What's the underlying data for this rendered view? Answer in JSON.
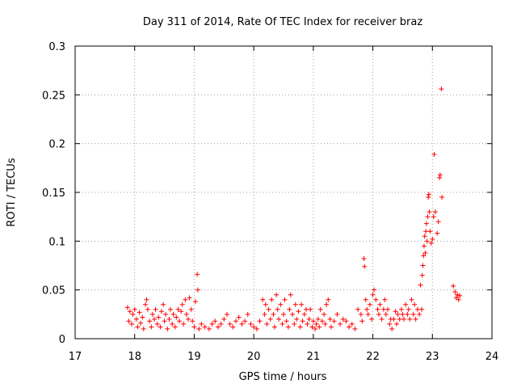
{
  "chart_data": {
    "type": "scatter",
    "title": "Day 311 of 2014, Rate Of TEC Index for receiver braz",
    "xlabel": "GPS time / hours",
    "ylabel": "ROTI / TECUs",
    "xlim": [
      17,
      24
    ],
    "ylim": [
      0,
      0.3
    ],
    "xticks": [
      17,
      18,
      19,
      20,
      21,
      22,
      23,
      24
    ],
    "xtick_labels": [
      "17",
      "18",
      "19",
      "20",
      "21",
      "22",
      "23",
      "24"
    ],
    "yticks": [
      0,
      0.05,
      0.1,
      0.15,
      0.2,
      0.25,
      0.3
    ],
    "ytick_labels": [
      "0",
      "0.05",
      "0.1",
      "0.15",
      "0.2",
      "0.25",
      "0.3"
    ],
    "grid": true,
    "marker": "+",
    "series": [
      {
        "name": "ROTI",
        "color": "#ff0000",
        "points": [
          [
            17.88,
            0.032
          ],
          [
            17.9,
            0.018
          ],
          [
            17.92,
            0.028
          ],
          [
            17.95,
            0.015
          ],
          [
            17.97,
            0.025
          ],
          [
            18.0,
            0.03
          ],
          [
            18.03,
            0.02
          ],
          [
            18.05,
            0.012
          ],
          [
            18.08,
            0.027
          ],
          [
            18.1,
            0.016
          ],
          [
            18.13,
            0.022
          ],
          [
            18.15,
            0.01
          ],
          [
            18.18,
            0.035
          ],
          [
            18.2,
            0.04
          ],
          [
            18.22,
            0.03
          ],
          [
            18.25,
            0.018
          ],
          [
            18.28,
            0.012
          ],
          [
            18.3,
            0.025
          ],
          [
            18.33,
            0.02
          ],
          [
            18.35,
            0.03
          ],
          [
            18.38,
            0.015
          ],
          [
            18.4,
            0.022
          ],
          [
            18.43,
            0.012
          ],
          [
            18.45,
            0.028
          ],
          [
            18.48,
            0.035
          ],
          [
            18.5,
            0.018
          ],
          [
            18.52,
            0.025
          ],
          [
            18.55,
            0.01
          ],
          [
            18.58,
            0.02
          ],
          [
            18.6,
            0.03
          ],
          [
            18.63,
            0.015
          ],
          [
            18.65,
            0.025
          ],
          [
            18.68,
            0.012
          ],
          [
            18.7,
            0.022
          ],
          [
            18.73,
            0.03
          ],
          [
            18.75,
            0.018
          ],
          [
            18.78,
            0.028
          ],
          [
            18.8,
            0.035
          ],
          [
            18.82,
            0.015
          ],
          [
            18.85,
            0.04
          ],
          [
            18.87,
            0.025
          ],
          [
            18.9,
            0.02
          ],
          [
            18.92,
            0.042
          ],
          [
            18.95,
            0.03
          ],
          [
            18.97,
            0.018
          ],
          [
            19.0,
            0.012
          ],
          [
            19.02,
            0.038
          ],
          [
            19.05,
            0.066
          ],
          [
            19.06,
            0.05
          ],
          [
            19.08,
            0.01
          ],
          [
            19.12,
            0.015
          ],
          [
            19.18,
            0.012
          ],
          [
            19.25,
            0.01
          ],
          [
            19.3,
            0.015
          ],
          [
            19.35,
            0.018
          ],
          [
            19.4,
            0.012
          ],
          [
            19.45,
            0.015
          ],
          [
            19.5,
            0.02
          ],
          [
            19.55,
            0.025
          ],
          [
            19.6,
            0.015
          ],
          [
            19.65,
            0.012
          ],
          [
            19.7,
            0.018
          ],
          [
            19.75,
            0.022
          ],
          [
            19.8,
            0.015
          ],
          [
            19.85,
            0.018
          ],
          [
            19.9,
            0.025
          ],
          [
            19.95,
            0.015
          ],
          [
            20.0,
            0.012
          ],
          [
            20.05,
            0.01
          ],
          [
            20.1,
            0.018
          ],
          [
            20.15,
            0.04
          ],
          [
            20.18,
            0.025
          ],
          [
            20.2,
            0.035
          ],
          [
            20.22,
            0.015
          ],
          [
            20.25,
            0.03
          ],
          [
            20.28,
            0.02
          ],
          [
            20.3,
            0.04
          ],
          [
            20.33,
            0.025
          ],
          [
            20.35,
            0.012
          ],
          [
            20.38,
            0.045
          ],
          [
            20.4,
            0.03
          ],
          [
            20.42,
            0.02
          ],
          [
            20.45,
            0.035
          ],
          [
            20.48,
            0.015
          ],
          [
            20.5,
            0.025
          ],
          [
            20.52,
            0.04
          ],
          [
            20.55,
            0.018
          ],
          [
            20.58,
            0.012
          ],
          [
            20.6,
            0.03
          ],
          [
            20.62,
            0.045
          ],
          [
            20.65,
            0.025
          ],
          [
            20.68,
            0.015
          ],
          [
            20.7,
            0.035
          ],
          [
            20.72,
            0.02
          ],
          [
            20.75,
            0.028
          ],
          [
            20.78,
            0.012
          ],
          [
            20.8,
            0.035
          ],
          [
            20.82,
            0.018
          ],
          [
            20.85,
            0.025
          ],
          [
            20.88,
            0.03
          ],
          [
            20.9,
            0.015
          ],
          [
            20.93,
            0.02
          ],
          [
            20.95,
            0.03
          ],
          [
            20.98,
            0.012
          ],
          [
            21.0,
            0.018
          ],
          [
            21.03,
            0.01
          ],
          [
            21.05,
            0.015
          ],
          [
            21.08,
            0.02
          ],
          [
            21.1,
            0.012
          ],
          [
            21.12,
            0.03
          ],
          [
            21.15,
            0.018
          ],
          [
            21.18,
            0.025
          ],
          [
            21.2,
            0.015
          ],
          [
            21.22,
            0.035
          ],
          [
            21.25,
            0.04
          ],
          [
            21.28,
            0.02
          ],
          [
            21.3,
            0.012
          ],
          [
            21.35,
            0.018
          ],
          [
            21.4,
            0.025
          ],
          [
            21.45,
            0.015
          ],
          [
            21.5,
            0.02
          ],
          [
            21.55,
            0.018
          ],
          [
            21.6,
            0.012
          ],
          [
            21.65,
            0.015
          ],
          [
            21.7,
            0.01
          ],
          [
            21.75,
            0.03
          ],
          [
            21.8,
            0.025
          ],
          [
            21.82,
            0.018
          ],
          [
            21.85,
            0.082
          ],
          [
            21.86,
            0.074
          ],
          [
            21.88,
            0.04
          ],
          [
            21.9,
            0.03
          ],
          [
            21.92,
            0.025
          ],
          [
            21.95,
            0.035
          ],
          [
            21.98,
            0.02
          ],
          [
            22.0,
            0.045
          ],
          [
            22.02,
            0.05
          ],
          [
            22.05,
            0.04
          ],
          [
            22.08,
            0.03
          ],
          [
            22.1,
            0.025
          ],
          [
            22.12,
            0.035
          ],
          [
            22.15,
            0.02
          ],
          [
            22.18,
            0.03
          ],
          [
            22.2,
            0.04
          ],
          [
            22.22,
            0.025
          ],
          [
            22.25,
            0.03
          ],
          [
            22.28,
            0.015
          ],
          [
            22.3,
            0.02
          ],
          [
            22.32,
            0.01
          ],
          [
            22.35,
            0.02
          ],
          [
            22.38,
            0.028
          ],
          [
            22.4,
            0.015
          ],
          [
            22.42,
            0.025
          ],
          [
            22.45,
            0.02
          ],
          [
            22.48,
            0.03
          ],
          [
            22.5,
            0.025
          ],
          [
            22.52,
            0.02
          ],
          [
            22.55,
            0.035
          ],
          [
            22.58,
            0.025
          ],
          [
            22.6,
            0.03
          ],
          [
            22.62,
            0.02
          ],
          [
            22.65,
            0.04
          ],
          [
            22.68,
            0.025
          ],
          [
            22.7,
            0.035
          ],
          [
            22.72,
            0.02
          ],
          [
            22.75,
            0.03
          ],
          [
            22.78,
            0.025
          ],
          [
            22.8,
            0.055
          ],
          [
            22.82,
            0.03
          ],
          [
            22.83,
            0.065
          ],
          [
            22.84,
            0.075
          ],
          [
            22.85,
            0.085
          ],
          [
            22.86,
            0.095
          ],
          [
            22.87,
            0.105
          ],
          [
            22.88,
            0.088
          ],
          [
            22.89,
            0.11
          ],
          [
            22.9,
            0.118
          ],
          [
            22.91,
            0.1
          ],
          [
            22.92,
            0.125
          ],
          [
            22.93,
            0.145
          ],
          [
            22.94,
            0.148
          ],
          [
            22.95,
            0.13
          ],
          [
            22.96,
            0.11
          ],
          [
            22.98,
            0.098
          ],
          [
            23.0,
            0.102
          ],
          [
            23.02,
            0.125
          ],
          [
            23.03,
            0.189
          ],
          [
            23.05,
            0.13
          ],
          [
            23.08,
            0.108
          ],
          [
            23.1,
            0.12
          ],
          [
            23.12,
            0.165
          ],
          [
            23.13,
            0.168
          ],
          [
            23.15,
            0.256
          ],
          [
            23.16,
            0.145
          ],
          [
            23.35,
            0.054
          ],
          [
            23.38,
            0.048
          ],
          [
            23.4,
            0.042
          ],
          [
            23.42,
            0.045
          ],
          [
            23.44,
            0.04
          ],
          [
            23.46,
            0.044
          ]
        ]
      }
    ]
  }
}
